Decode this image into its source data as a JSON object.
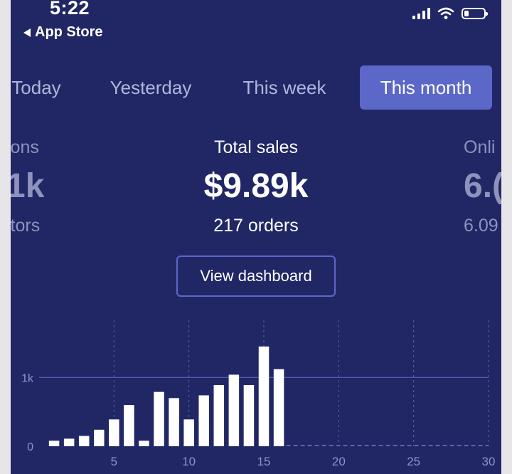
{
  "status_bar": {
    "time": "5:22",
    "back_label": "App Store"
  },
  "tabs": [
    {
      "label": "Today",
      "active": false
    },
    {
      "label": "Yesterday",
      "active": false
    },
    {
      "label": "This week",
      "active": false
    },
    {
      "label": "This month",
      "active": true
    }
  ],
  "metrics": {
    "left": {
      "label": "ions",
      "value": "1k",
      "sub": "itors"
    },
    "center": {
      "label": "Total sales",
      "value": "$9.89k",
      "sub": "217 orders"
    },
    "right": {
      "label": "Onli",
      "value": "6.(",
      "sub": "6.09"
    }
  },
  "dashboard_button": "View dashboard",
  "colors": {
    "background": "#212765",
    "accent": "#5c68c8",
    "bar": "#ffffff",
    "faded": "#8e93bd"
  },
  "chart_data": {
    "type": "bar",
    "x": [
      1,
      2,
      3,
      4,
      5,
      6,
      7,
      8,
      9,
      10,
      11,
      12,
      13,
      14,
      15,
      16
    ],
    "values": [
      80,
      110,
      150,
      240,
      390,
      600,
      80,
      790,
      700,
      390,
      740,
      890,
      1040,
      890,
      1450,
      1120
    ],
    "xticks": [
      5,
      10,
      15,
      20,
      25,
      30
    ],
    "ytick_labels": [
      "0",
      "1k"
    ],
    "yticks": [
      0,
      1000
    ],
    "xlim": [
      0,
      30
    ],
    "ylim": [
      0,
      1500
    ]
  }
}
